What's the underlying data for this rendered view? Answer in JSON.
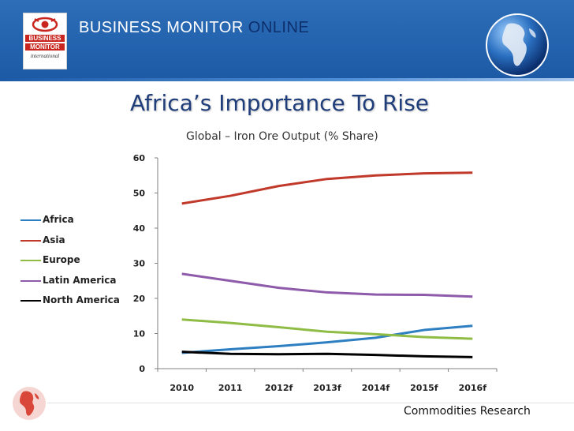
{
  "header": {
    "logo_line1": "BUSINESS",
    "logo_line2": "MONITOR",
    "logo_sub": "international",
    "brand_part1": "BUSINESS MONITOR",
    "brand_part2": "ONLINE"
  },
  "slide": {
    "title": "Africa’s Importance To Rise"
  },
  "footer": {
    "text": "Commodities Research"
  },
  "colors": {
    "banner": "#2565b0",
    "africa": "#2e7fc1",
    "asia": "#c0392b",
    "europe": "#8fbc45",
    "latin_america": "#8e5bab",
    "north_america": "#000000"
  },
  "chart_data": {
    "type": "line",
    "title": "Global – Iron Ore Output (% Share)",
    "xlabel": "",
    "ylabel": "",
    "categories": [
      "2010",
      "2011",
      "2012f",
      "2013f",
      "2014f",
      "2015f",
      "2016f"
    ],
    "ylim": [
      0,
      60
    ],
    "yticks": [
      "0",
      "10",
      "20",
      "30",
      "40",
      "50",
      "60"
    ],
    "grid": false,
    "legend_position": "left",
    "series": [
      {
        "name": "Africa",
        "color": "#2e7fc1",
        "values": [
          4.5,
          5.5,
          6.4,
          7.5,
          8.8,
          11.0,
          12.2
        ]
      },
      {
        "name": "Asia",
        "color": "#c0392b",
        "values": [
          47.0,
          49.2,
          52.0,
          54.0,
          55.0,
          55.6,
          55.8
        ]
      },
      {
        "name": "Europe",
        "color": "#8fbc45",
        "values": [
          14.0,
          13.0,
          11.8,
          10.5,
          9.8,
          9.0,
          8.5
        ]
      },
      {
        "name": "Latin America",
        "color": "#8e5bab",
        "values": [
          27.0,
          25.0,
          23.0,
          21.7,
          21.1,
          21.0,
          20.5
        ]
      },
      {
        "name": "North America",
        "color": "#000000",
        "values": [
          4.8,
          4.2,
          4.1,
          4.2,
          3.9,
          3.5,
          3.3
        ]
      }
    ]
  }
}
